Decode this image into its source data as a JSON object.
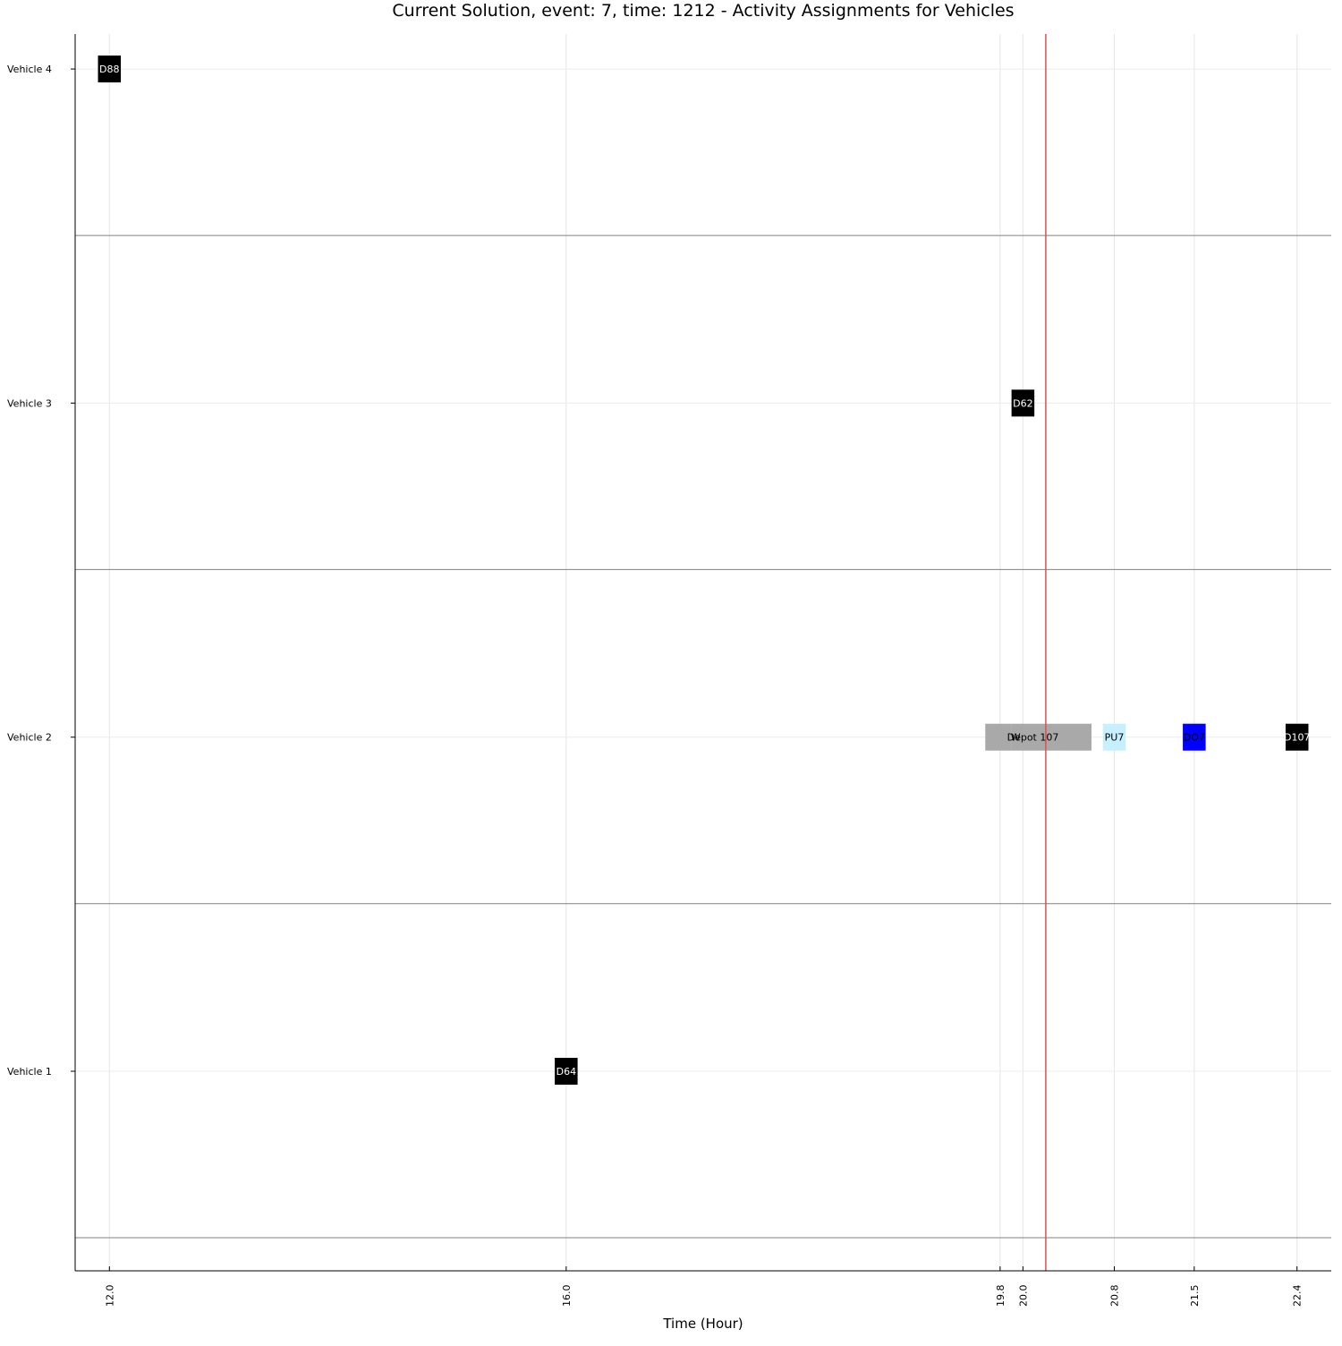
{
  "chart_data": {
    "type": "gantt",
    "title": "Current Solution, event: 7, time: 1212 - Activity Assignments for Vehicles",
    "xlabel": "Time (Hour)",
    "ylabel": "",
    "x_ticks": [
      "12.0",
      "16.0",
      "19.8",
      "20.0",
      "20.8",
      "21.5",
      "22.4"
    ],
    "xlim": [
      11.7,
      22.7
    ],
    "vehicles": [
      "Vehicle 1",
      "Vehicle 2",
      "Vehicle 3",
      "Vehicle 4"
    ],
    "current_time": 20.2,
    "grid": true,
    "colors": {
      "D": "#000000",
      "W": "#a9a9a9",
      "PU": "#c6f0ff",
      "DO": "#0000ff",
      "current_time_line": "#e05050",
      "separator": "#808080"
    },
    "activities": [
      {
        "vehicle": "Vehicle 4",
        "label": "D88",
        "type": "D",
        "start": 11.9,
        "end": 12.1
      },
      {
        "vehicle": "Vehicle 3",
        "label": "D62",
        "type": "D",
        "start": 19.9,
        "end": 20.1
      },
      {
        "vehicle": "Vehicle 2",
        "label": "W",
        "type": "W",
        "start": 19.67,
        "end": 19.9
      },
      {
        "vehicle": "Vehicle 2",
        "label": "Depot 107",
        "type": "W",
        "start": 19.9,
        "end": 20.6
      },
      {
        "vehicle": "Vehicle 2",
        "label": "PU7",
        "type": "PU",
        "start": 20.7,
        "end": 20.9
      },
      {
        "vehicle": "Vehicle 2",
        "label": "DO7",
        "type": "DO",
        "start": 21.4,
        "end": 21.6
      },
      {
        "vehicle": "Vehicle 2",
        "label": "D107",
        "type": "D",
        "start": 22.3,
        "end": 22.5
      },
      {
        "vehicle": "Vehicle 1",
        "label": "D64",
        "type": "D",
        "start": 15.9,
        "end": 16.1
      }
    ]
  }
}
